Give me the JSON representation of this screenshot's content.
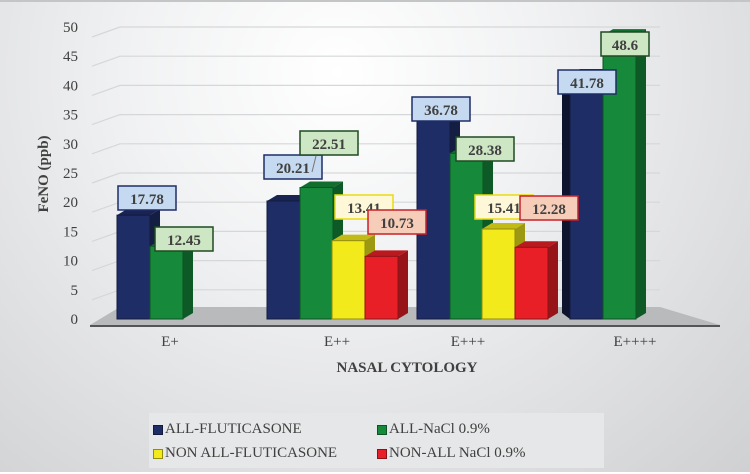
{
  "chart_data": {
    "type": "bar",
    "style": "3d-clustered-column",
    "title": "",
    "xlabel": "NASAL CYTOLOGY",
    "ylabel": "FeNO (ppb)",
    "ylim": [
      0,
      50
    ],
    "yticks": [
      0,
      5,
      10,
      15,
      20,
      25,
      30,
      35,
      40,
      45,
      50
    ],
    "grid": true,
    "legend_position": "bottom",
    "categories": [
      "E+",
      "E++",
      "E+++",
      "E++++"
    ],
    "series": [
      {
        "name": "ALL-FLUTICASONE",
        "color": "#1f2d66",
        "label_bg": "#c5daf0",
        "label_border": "#1f2d66",
        "values": [
          17.78,
          20.21,
          36.78,
          41.78
        ]
      },
      {
        "name": "ALL-NaCl 0.9%",
        "color": "#168a3a",
        "label_bg": "#cde6c3",
        "label_border": "#1e4a22",
        "values": [
          12.45,
          22.51,
          28.38,
          48.6
        ]
      },
      {
        "name": "NON ALL-FLUTICASONE",
        "color": "#f2ea1a",
        "label_bg": "#fff8d8",
        "label_border": "#e8dc10",
        "values": [
          null,
          13.41,
          15.41,
          null
        ]
      },
      {
        "name": "NON-ALL NaCl 0.9%",
        "color": "#e81f26",
        "label_bg": "#f6cdb8",
        "label_border": "#c8202a",
        "values": [
          null,
          10.73,
          12.28,
          null
        ]
      }
    ],
    "data_labels": [
      [
        "17.78",
        "20.21",
        "36.78",
        "41.78"
      ],
      [
        "12.45",
        "22.51",
        "28.38",
        "48.6"
      ],
      [
        null,
        "13.41",
        "15.41",
        null
      ],
      [
        null,
        "10.73",
        "12.28",
        null
      ]
    ]
  }
}
